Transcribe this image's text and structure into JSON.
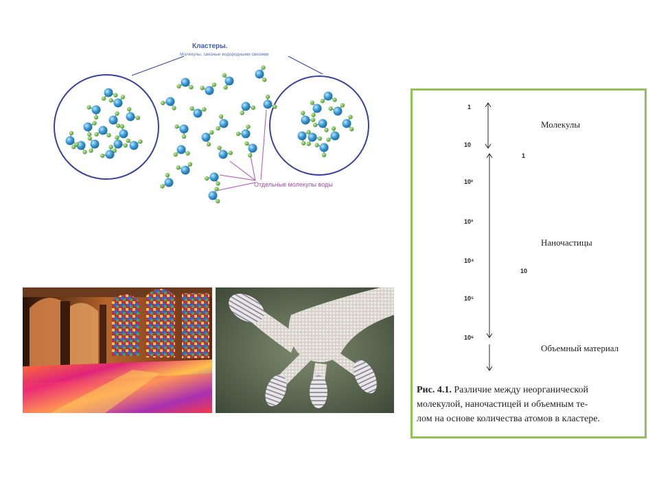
{
  "cluster": {
    "title": "Кластеры.",
    "subtitle": "Молекулы, связные водородными связями",
    "separate_label": "Отдельные молекулы воды"
  },
  "scale": {
    "ticks": [
      "1",
      "10",
      "10²",
      "10³",
      "10⁴",
      "10⁵",
      "10⁶"
    ],
    "markers": [
      "1",
      "10"
    ],
    "labels": {
      "molecules": "Молекулы",
      "nanoparticles": "Наночастицы",
      "bulk": "Объемный материал"
    },
    "caption_prefix": "Рис. 4.1.",
    "caption_line1": "Различие между неорганической",
    "caption_line2": "молекулой, наночастицей и объемным те-",
    "caption_line3": "лом на основе количества атомов в кластере."
  },
  "colors": {
    "panel_border": "#8fc455",
    "circle": "#3a3f9c",
    "oxygen": "#3a9bd6",
    "hydrogen": "#6db84a"
  }
}
